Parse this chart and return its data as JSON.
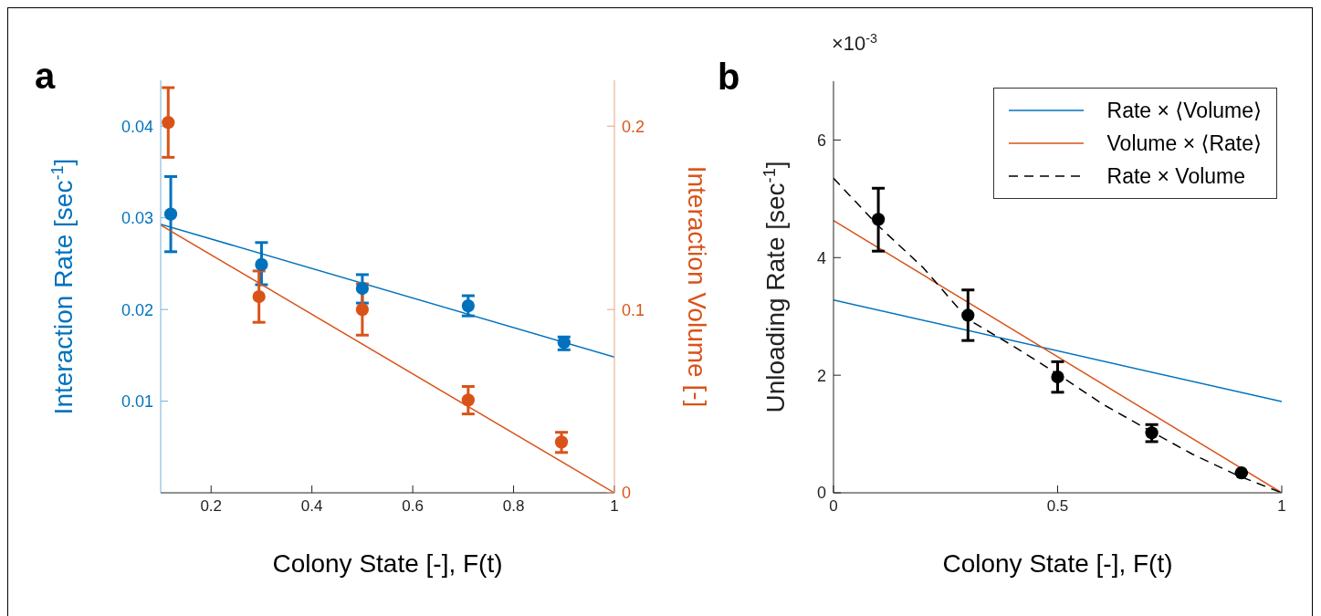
{
  "chart_data": [
    {
      "type": "scatter",
      "annotations": [
        "a"
      ],
      "xlabel": "Colony State [-], F(t)",
      "ylabel": "Interaction Rate [sec$^{-1}$]",
      "y2label": "Interaction Volume [-]",
      "xlim": [
        0.1,
        1
      ],
      "xticks": [
        0.2,
        0.4,
        0.6,
        0.8,
        1
      ],
      "ylim": [
        0,
        0.045
      ],
      "yticks": [
        0.01,
        0.02,
        0.03,
        0.04
      ],
      "y2lim": [
        0,
        0.225
      ],
      "y2ticks": [
        0,
        0.1,
        0.2
      ],
      "grid": false,
      "legend": false,
      "marker": "circle",
      "series": [
        {
          "color": "#0072bd",
          "x": [
            0.12,
            0.3,
            0.5,
            0.71,
            0.9
          ],
          "values": [
            0.0304,
            0.0249,
            0.0223,
            0.0204,
            0.0164
          ],
          "errors": [
            [
              0.0263,
              0.0345
            ],
            [
              0.0227,
              0.0273
            ],
            [
              0.0207,
              0.0238
            ],
            [
              0.0193,
              0.0215
            ],
            [
              0.0156,
              0.017
            ]
          ]
        },
        {
          "type": "line",
          "marker": "none",
          "color": "#0072bd",
          "x": [
            0.1,
            1
          ],
          "values": [
            0.0293,
            0.0148
          ]
        },
        {
          "axis": "y2",
          "color": "#d95319",
          "x": [
            0.115,
            0.295,
            0.5,
            0.71,
            0.895
          ],
          "values": [
            0.202,
            0.107,
            0.1,
            0.0506,
            0.0277
          ],
          "errors": [
            [
              0.183,
              0.221
            ],
            [
              0.093,
              0.121
            ],
            [
              0.086,
              0.114
            ],
            [
              0.043,
              0.058
            ],
            [
              0.022,
              0.033
            ]
          ]
        },
        {
          "type": "line",
          "marker": "none",
          "axis": "y2",
          "color": "#d95319",
          "x": [
            0.1,
            1
          ],
          "values": [
            0.146,
            0
          ]
        }
      ]
    },
    {
      "type": "scatter",
      "annotations": [
        "b",
        "×10$^{-3}$"
      ],
      "xlabel": "Colony State [-], F(t)",
      "ylabel": "Unloading Rate [sec$^{-1}$]",
      "xlim": [
        0,
        1
      ],
      "xticks": [
        0,
        0.5,
        1
      ],
      "ylim": [
        0,
        7
      ],
      "yticks": [
        0,
        2,
        4,
        6
      ],
      "grid": false,
      "legend": "top right",
      "marker": "circle",
      "series": [
        {
          "type": "line",
          "marker": "none",
          "name": "Rate × ⟨Volume⟩",
          "color": "#0072bd",
          "x": [
            0,
            1
          ],
          "values": [
            3.28,
            1.55
          ]
        },
        {
          "type": "line",
          "marker": "none",
          "name": "Volume × ⟨Rate⟩",
          "color": "#d95319",
          "x": [
            0,
            1
          ],
          "values": [
            4.63,
            0
          ]
        },
        {
          "type": "line",
          "marker": "none",
          "name": "Rate × Volume",
          "color": "#000000",
          "line_style": "dashed",
          "x": [
            0,
            0.1,
            0.2,
            0.3,
            0.4,
            0.5,
            0.6,
            0.7,
            0.8,
            0.9,
            1
          ],
          "values": [
            5.35,
            4.54,
            3.83,
            2.95,
            2.5,
            2.02,
            1.51,
            1.08,
            0.66,
            0.3,
            0
          ]
        },
        {
          "color": "#000000",
          "x": [
            0.1,
            0.3,
            0.5,
            0.71,
            0.91
          ],
          "values": [
            4.65,
            3.02,
            1.97,
            1.02,
            0.34
          ],
          "errors": [
            [
              4.11,
              5.18
            ],
            [
              2.59,
              3.45
            ],
            [
              1.71,
              2.23
            ],
            [
              0.87,
              1.16
            ],
            null
          ]
        }
      ]
    }
  ]
}
